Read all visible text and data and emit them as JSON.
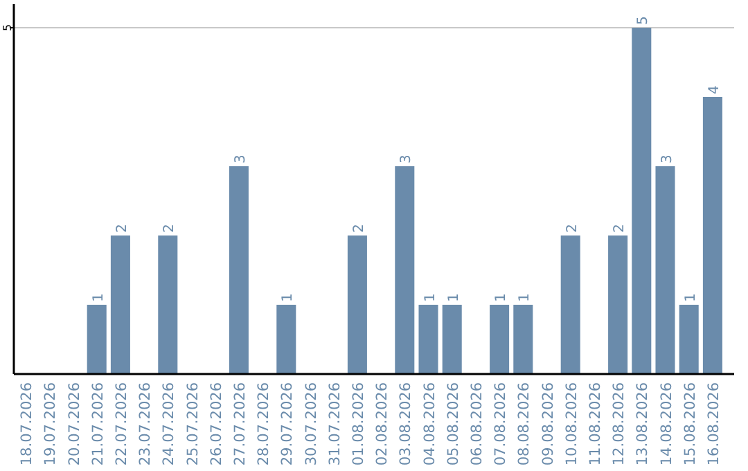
{
  "chart_data": {
    "type": "bar",
    "categories": [
      "18.07.2026",
      "19.07.2026",
      "20.07.2026",
      "21.07.2026",
      "22.07.2026",
      "23.07.2026",
      "24.07.2026",
      "25.07.2026",
      "26.07.2026",
      "27.07.2026",
      "28.07.2026",
      "29.07.2026",
      "30.07.2026",
      "31.07.2026",
      "01.08.2026",
      "02.08.2026",
      "03.08.2026",
      "04.08.2026",
      "05.08.2026",
      "06.08.2026",
      "07.08.2026",
      "08.08.2026",
      "09.08.2026",
      "10.08.2026",
      "11.08.2026",
      "12.08.2026",
      "13.08.2026",
      "14.08.2026",
      "15.08.2026",
      "16.08.2026"
    ],
    "values": [
      0,
      0,
      0,
      1,
      2,
      0,
      2,
      0,
      0,
      3,
      0,
      1,
      0,
      0,
      2,
      0,
      3,
      1,
      1,
      0,
      1,
      1,
      0,
      2,
      0,
      2,
      5,
      3,
      1,
      4
    ],
    "value_labels": [
      null,
      null,
      null,
      "1",
      "2",
      null,
      "2",
      null,
      null,
      "3",
      null,
      "1",
      null,
      null,
      "2",
      null,
      "3",
      "1",
      "1",
      null,
      "1",
      "1",
      null,
      "2",
      null,
      "2",
      "5",
      "3",
      "1",
      "4"
    ],
    "color": "#6a8bab",
    "ylim": [
      0,
      5
    ],
    "yticks": [
      5
    ],
    "ref_lines": [
      {
        "axis": "y",
        "value": 5,
        "color": "#c8c8c8"
      }
    ]
  }
}
